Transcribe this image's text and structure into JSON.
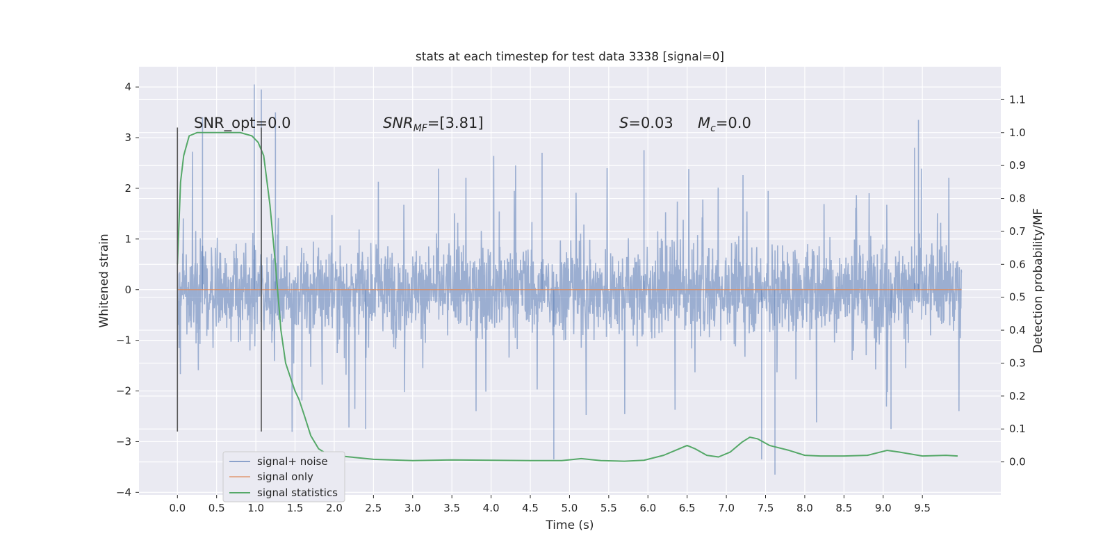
{
  "chart_data": {
    "type": "line",
    "title": "stats at each timestep for test data 3338 [signal=0]",
    "xlabel": "Time (s)",
    "ylabel_left": "Whitened strain",
    "ylabel_right": "Detection probability/MF",
    "xlim": [
      -0.49,
      10.5
    ],
    "ylim_left": [
      -4.05,
      4.4
    ],
    "ylim_right": [
      -0.1,
      1.2
    ],
    "x_ticks": [
      0.0,
      0.5,
      1.0,
      1.5,
      2.0,
      2.5,
      3.0,
      3.5,
      4.0,
      4.5,
      5.0,
      5.5,
      6.0,
      6.5,
      7.0,
      7.5,
      8.0,
      8.5,
      9.0,
      9.5
    ],
    "x_tick_labels": [
      "0.0",
      "0.5",
      "1.0",
      "1.5",
      "2.0",
      "2.5",
      "3.0",
      "3.5",
      "4.0",
      "4.5",
      "5.0",
      "5.5",
      "6.0",
      "6.5",
      "7.0",
      "7.5",
      "8.0",
      "8.5",
      "9.0",
      "9.5"
    ],
    "y_left_ticks": [
      -4,
      -3,
      -2,
      -1,
      0,
      1,
      2,
      3,
      4
    ],
    "y_left_tick_labels": [
      "−4",
      "−3",
      "−2",
      "−1",
      "0",
      "1",
      "2",
      "3",
      "4"
    ],
    "y_right_ticks": [
      0.0,
      0.1,
      0.2,
      0.3,
      0.4,
      0.5,
      0.6,
      0.7,
      0.8,
      0.9,
      1.0,
      1.1
    ],
    "y_right_tick_labels": [
      "0.0",
      "0.1",
      "0.2",
      "0.3",
      "0.4",
      "0.5",
      "0.6",
      "0.7",
      "0.8",
      "0.9",
      "1.0",
      "1.1"
    ],
    "grid": true,
    "legend_position": "lower-left",
    "vlines_x": [
      0.0,
      1.07
    ],
    "vlines_range": [
      -2.8,
      3.2
    ],
    "annotations": {
      "snr_opt": "SNR_opt=0.0",
      "snr_mf_label": "SNR",
      "snr_mf_sub": "MF",
      "snr_mf_value": "=[3.81]",
      "s_label": "S",
      "s_value": "=0.03",
      "mc_label": "M",
      "mc_sub": "c",
      "mc_value": "=0.0"
    },
    "series": [
      {
        "name": "signal+ noise",
        "color": "#4c72b0",
        "kind": "noise",
        "t_range": [
          0.0,
          10.0
        ],
        "amplitude_core": 1.35,
        "spike_max": 4.05,
        "spike_min": -3.65
      },
      {
        "name": "signal only",
        "color": "#dd8452",
        "kind": "flat",
        "t_range": [
          0.0,
          10.0
        ],
        "value": 0.0
      },
      {
        "name": "signal statistics",
        "color": "#55a868",
        "kind": "line",
        "axis": "right",
        "x": [
          0.0,
          0.04,
          0.08,
          0.15,
          0.25,
          0.4,
          0.6,
          0.8,
          0.95,
          1.03,
          1.1,
          1.18,
          1.25,
          1.32,
          1.38,
          1.45,
          1.5,
          1.55,
          1.62,
          1.7,
          1.8,
          1.9,
          2.0,
          2.2,
          2.5,
          3.0,
          3.5,
          4.0,
          4.5,
          4.9,
          5.15,
          5.4,
          5.7,
          5.95,
          6.2,
          6.4,
          6.5,
          6.6,
          6.75,
          6.9,
          7.05,
          7.2,
          7.3,
          7.4,
          7.55,
          7.8,
          8.0,
          8.2,
          8.5,
          8.8,
          9.05,
          9.2,
          9.5,
          9.8,
          9.95
        ],
        "values": [
          0.6,
          0.85,
          0.93,
          0.99,
          1.0,
          1.0,
          1.0,
          1.0,
          0.99,
          0.97,
          0.93,
          0.78,
          0.6,
          0.4,
          0.3,
          0.25,
          0.215,
          0.19,
          0.14,
          0.08,
          0.04,
          0.025,
          0.02,
          0.015,
          0.008,
          0.004,
          0.006,
          0.005,
          0.004,
          0.004,
          0.01,
          0.004,
          0.002,
          0.005,
          0.02,
          0.04,
          0.05,
          0.04,
          0.02,
          0.015,
          0.03,
          0.06,
          0.075,
          0.07,
          0.05,
          0.035,
          0.02,
          0.018,
          0.018,
          0.02,
          0.035,
          0.03,
          0.018,
          0.02,
          0.018
        ]
      }
    ]
  }
}
